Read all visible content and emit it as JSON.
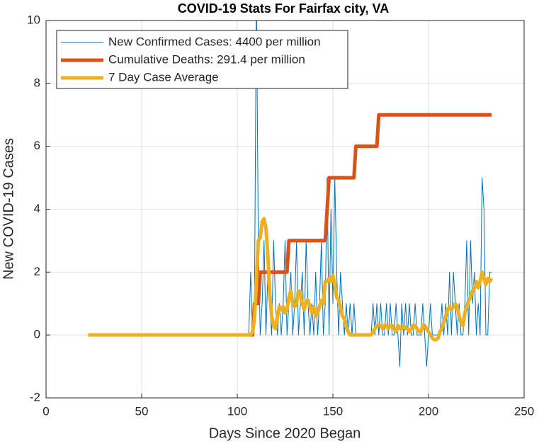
{
  "chart_data": {
    "type": "line",
    "title": "COVID-19 Stats For Fairfax city, VA",
    "x_label": "Days Since 2020 Began",
    "y_label": "New COVID-19 Cases",
    "x": [
      22,
      40,
      60,
      80,
      100,
      106,
      107,
      108,
      109,
      110,
      111,
      112,
      113,
      114,
      115,
      116,
      117,
      118,
      119,
      120,
      121,
      122,
      123,
      124,
      125,
      126,
      127,
      128,
      129,
      130,
      131,
      132,
      133,
      134,
      135,
      136,
      137,
      138,
      139,
      140,
      141,
      142,
      143,
      144,
      145,
      146,
      147,
      148,
      149,
      150,
      151,
      152,
      153,
      154,
      155,
      156,
      157,
      158,
      159,
      160,
      161,
      162,
      163,
      164,
      165,
      166,
      167,
      168,
      169,
      170,
      171,
      172,
      173,
      174,
      175,
      176,
      177,
      178,
      179,
      180,
      181,
      182,
      183,
      184,
      185,
      186,
      187,
      188,
      189,
      190,
      191,
      192,
      193,
      194,
      195,
      196,
      197,
      198,
      199,
      200,
      201,
      202,
      203,
      204,
      205,
      206,
      207,
      208,
      209,
      210,
      211,
      212,
      213,
      214,
      215,
      216,
      217,
      218,
      219,
      220,
      221,
      222,
      223,
      224,
      225,
      226,
      227,
      228,
      229,
      230,
      231,
      232,
      233
    ],
    "series": [
      {
        "name": "New Confirmed Cases: 4400 per million",
        "color": "#0072bd",
        "values": [
          0,
          0,
          0,
          0,
          0,
          0,
          2,
          0,
          1,
          11,
          3,
          0,
          1,
          3,
          0,
          2,
          1,
          0,
          3,
          1,
          0,
          1,
          0,
          1,
          3,
          0,
          1,
          2,
          0,
          1,
          3,
          0,
          1,
          2,
          0,
          3,
          1,
          0,
          1,
          0,
          2,
          0,
          1,
          3,
          0,
          1,
          5,
          0,
          4,
          1,
          5,
          2,
          0,
          2,
          1,
          0,
          1,
          0,
          1,
          0,
          1,
          0,
          0,
          0,
          0,
          0,
          0,
          0,
          0,
          0,
          1,
          0,
          1,
          0,
          1,
          0,
          0,
          1,
          0,
          1,
          0,
          0,
          1,
          0,
          -1,
          1,
          0,
          1,
          0,
          1,
          0,
          0,
          1,
          0,
          0,
          0,
          1,
          0,
          -1,
          0,
          1,
          0,
          0,
          0,
          0,
          0,
          1,
          0,
          1,
          0,
          2,
          0,
          2,
          1,
          0,
          1,
          0,
          0,
          1,
          3,
          0,
          3,
          1,
          2,
          0,
          1,
          0,
          5,
          4,
          0,
          0,
          2,
          2
        ]
      },
      {
        "name": "Cumulative Deaths: 291.4 per million",
        "color": "#d95319",
        "values": [
          null,
          null,
          null,
          null,
          null,
          0,
          0,
          0,
          1,
          1,
          1,
          2,
          2,
          2,
          2,
          2,
          2,
          2,
          2,
          2,
          2,
          2,
          2,
          2,
          2,
          2,
          3,
          3,
          3,
          3,
          3,
          3,
          3,
          3,
          3,
          3,
          3,
          3,
          3,
          3,
          3,
          3,
          3,
          3,
          3,
          3,
          4,
          5,
          5,
          5,
          5,
          5,
          5,
          5,
          5,
          5,
          5,
          5,
          5,
          5,
          5,
          6,
          6,
          6,
          6,
          6,
          6,
          6,
          6,
          6,
          6,
          6,
          6,
          7,
          7,
          7,
          7,
          7,
          7,
          7,
          7,
          7,
          7,
          7,
          7,
          7,
          7,
          7,
          7,
          7,
          7,
          7,
          7,
          7,
          7,
          7,
          7,
          7,
          7,
          7,
          7,
          7,
          7,
          7,
          7,
          7,
          7,
          7,
          7,
          7,
          7,
          7,
          7,
          7,
          7,
          7,
          7,
          7,
          7,
          7,
          7,
          7,
          7,
          7,
          7,
          7,
          7,
          7,
          7,
          7,
          7,
          7,
          7
        ]
      },
      {
        "name": "7 Day Case Average",
        "color": "#edb120",
        "values": [
          0,
          0,
          0,
          0,
          0,
          0,
          0,
          0.1,
          0.5,
          1.7,
          3,
          3.1,
          3.6,
          3.7,
          3.4,
          2.5,
          1.3,
          0.6,
          0.3,
          0.2,
          0.6,
          0.9,
          0.8,
          0.9,
          0.7,
          0.8,
          1.2,
          1.4,
          1.0,
          0.9,
          1.0,
          1.4,
          1.3,
          1.0,
          0.8,
          1.1,
          1.1,
          0.9,
          0.7,
          0.9,
          0.6,
          0.7,
          0.9,
          1.1,
          1.0,
          1.7,
          1.7,
          1.8,
          1.7,
          1.9,
          1.6,
          1.2,
          1.1,
          0.9,
          0.6,
          0.5,
          0.3,
          0.1,
          0,
          0,
          0,
          0,
          0,
          0,
          0,
          0,
          0,
          0,
          0,
          0,
          0.1,
          0.2,
          0.3,
          0.3,
          0.3,
          0.2,
          0.3,
          0.3,
          0.2,
          0.3,
          0.3,
          0.2,
          0.1,
          0.3,
          0.2,
          0.2,
          0.3,
          0.2,
          0.2,
          0.1,
          0.2,
          0.3,
          0.3,
          0.2,
          0.1,
          0.1,
          0.3,
          0.3,
          0.2,
          0.1,
          0,
          -0.1,
          -0.15,
          -0.15,
          -0.1,
          0.1,
          0.2,
          0.4,
          0.6,
          0.8,
          0.9,
          0.8,
          0.9,
          1.0,
          0.9,
          0.6,
          0.4,
          0.3,
          0.7,
          0.9,
          1.1,
          1.2,
          1.4,
          1.5,
          1.7,
          1.5,
          1.7,
          2.0,
          1.8,
          1.6,
          1.8,
          1.7,
          1.8
        ]
      }
    ],
    "xlim": [
      0,
      250
    ],
    "xticks": [
      0,
      50,
      100,
      150,
      200,
      250
    ],
    "ylim": [
      -2,
      10
    ],
    "yticks": [
      -2,
      0,
      2,
      4,
      6,
      8,
      10
    ],
    "grid": true,
    "legend": "northwest"
  }
}
